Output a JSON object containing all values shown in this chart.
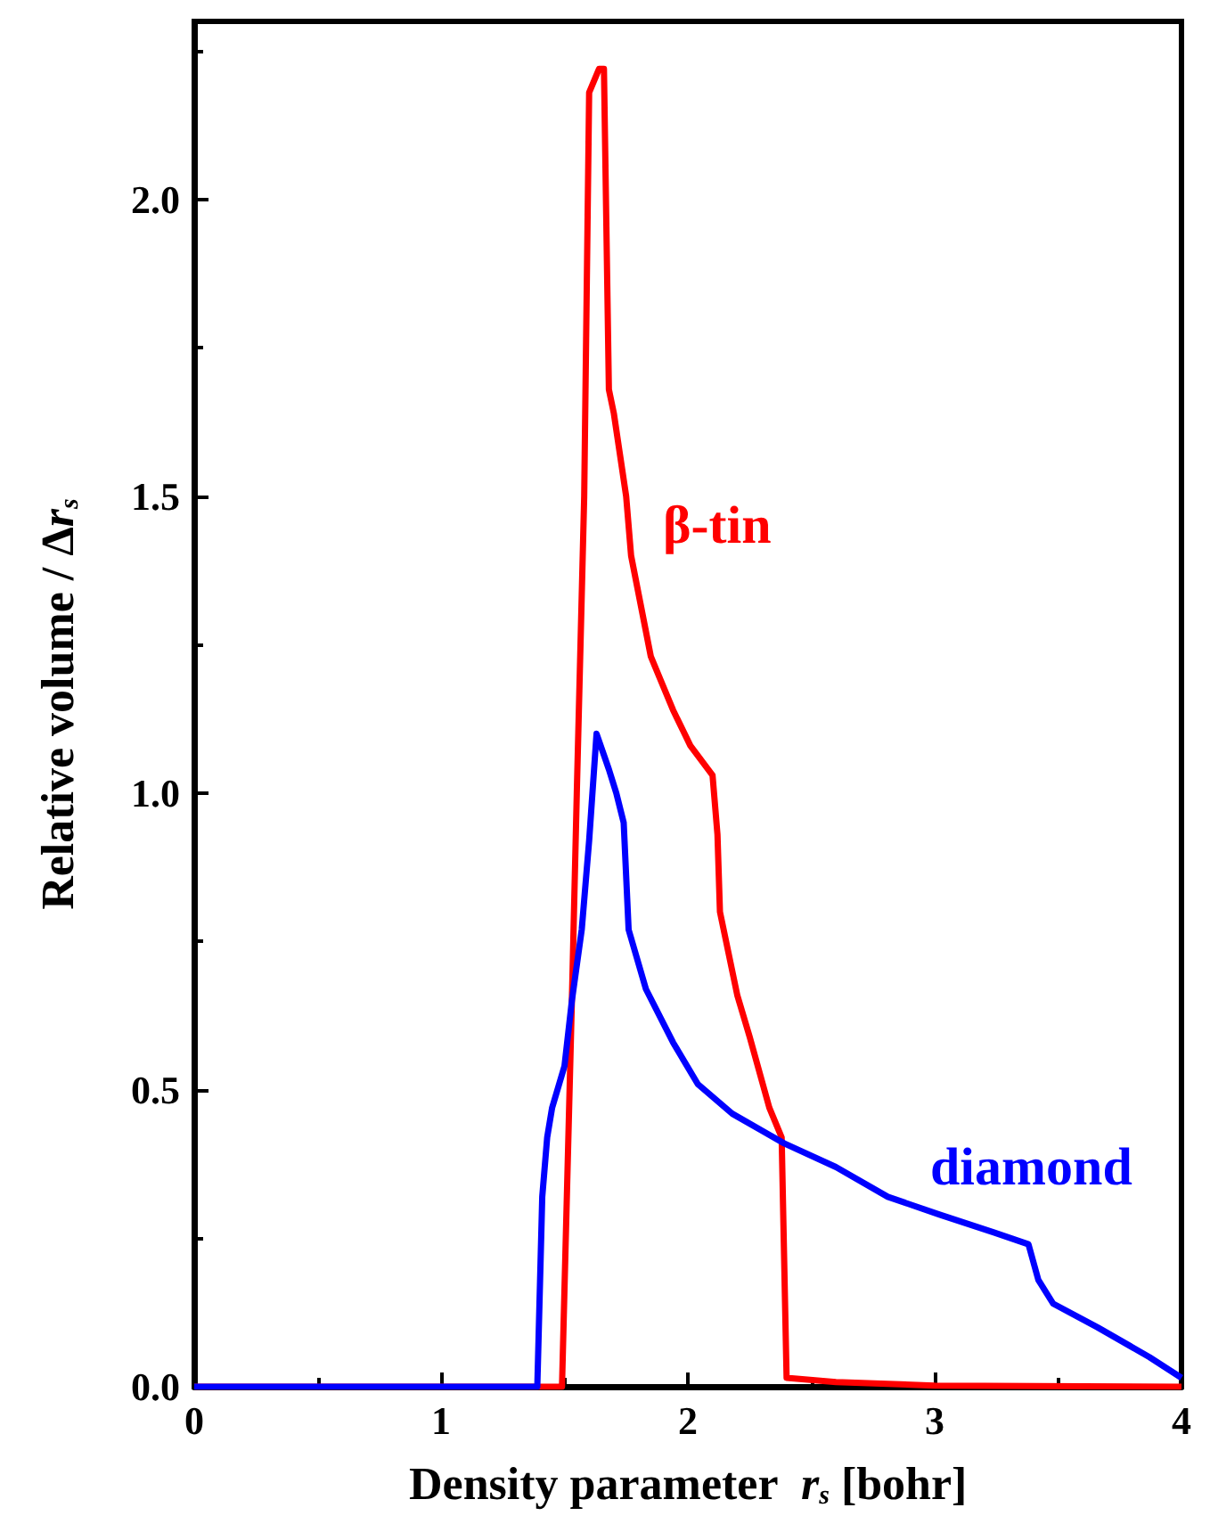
{
  "chart_data": {
    "type": "line",
    "xlabel": "Density parameter  r$_{s}$ [bohr]",
    "ylabel": "Relative volume / Δr$_{s}$",
    "xlim": [
      0,
      4
    ],
    "xticks": [
      0,
      1,
      2,
      3,
      4
    ],
    "ylim": [
      0,
      2.3
    ],
    "yticks": [
      {
        "value": 0,
        "label": "0.0"
      },
      {
        "value": 0.5,
        "label": "0.5"
      },
      {
        "value": 1,
        "label": "1.0"
      },
      {
        "value": 1.5,
        "label": "1.5"
      },
      {
        "value": 2,
        "label": "2.0"
      }
    ],
    "grid": false,
    "legend": false,
    "marker": "none",
    "line_style": "solid",
    "series": [
      {
        "name": "β-tin",
        "color": "#ff0000",
        "x": [
          0,
          1.49,
          1.53,
          1.55,
          1.58,
          1.6,
          1.64,
          1.66,
          1.68,
          1.7,
          1.75,
          1.77,
          1.85,
          1.94,
          2.01,
          2.1,
          2.12,
          2.13,
          2.2,
          2.25,
          2.33,
          2.38,
          2.4,
          2.6,
          3.0,
          4.0
        ],
        "values": [
          0,
          0,
          0.65,
          1.0,
          1.5,
          2.18,
          2.22,
          2.22,
          1.68,
          1.64,
          1.5,
          1.4,
          1.23,
          1.14,
          1.08,
          1.03,
          0.93,
          0.8,
          0.66,
          0.59,
          0.47,
          0.42,
          0.015,
          0.008,
          0.002,
          0
        ]
      },
      {
        "name": "diamond",
        "color": "#0000ff",
        "x": [
          0,
          1.39,
          1.41,
          1.43,
          1.45,
          1.5,
          1.53,
          1.57,
          1.6,
          1.63,
          1.68,
          1.71,
          1.74,
          1.76,
          1.83,
          1.94,
          2.04,
          2.18,
          2.39,
          2.6,
          2.81,
          3.02,
          3.24,
          3.38,
          3.42,
          3.48,
          3.66,
          3.87,
          4.0
        ],
        "values": [
          0,
          0,
          0.32,
          0.42,
          0.47,
          0.54,
          0.65,
          0.77,
          0.92,
          1.1,
          1.04,
          1.0,
          0.95,
          0.77,
          0.67,
          0.58,
          0.51,
          0.46,
          0.41,
          0.37,
          0.32,
          0.29,
          0.26,
          0.24,
          0.18,
          0.14,
          0.1,
          0.05,
          0.015
        ]
      }
    ]
  }
}
